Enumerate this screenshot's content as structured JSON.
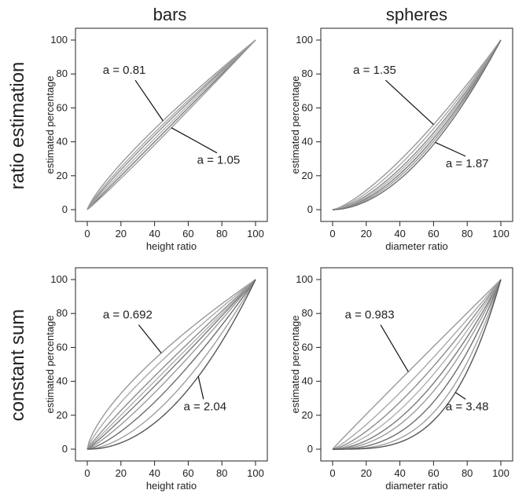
{
  "layout_labels": {
    "columns": [
      "bars",
      "spheres"
    ],
    "rows": [
      "ratio estimation",
      "constant sum"
    ]
  },
  "chart_data": [
    {
      "type": "line",
      "row": "ratio estimation",
      "column": "bars",
      "xlabel": "height ratio",
      "ylabel": "estimated percentage",
      "xlim": [
        0,
        100
      ],
      "ylim": [
        0,
        100
      ],
      "xticks": [
        0,
        20,
        40,
        60,
        80,
        100
      ],
      "yticks": [
        0,
        20,
        40,
        60,
        80,
        100
      ],
      "model": "y = 100 * (x/100)^a",
      "exponents": [
        0.81,
        0.86,
        0.9,
        0.95,
        1.0,
        1.05
      ],
      "annotations": [
        {
          "text": "a = 0.81",
          "exponent": 0.81,
          "label_x": 22,
          "label_y": 80,
          "point_x": 45
        },
        {
          "text": "a = 1.05",
          "exponent": 1.05,
          "label_x": 78,
          "label_y": 27,
          "point_x": 50
        }
      ]
    },
    {
      "type": "line",
      "row": "ratio estimation",
      "column": "spheres",
      "xlabel": "diameter ratio",
      "ylabel": "estimated percentage",
      "xlim": [
        0,
        100
      ],
      "ylim": [
        0,
        100
      ],
      "xticks": [
        0,
        20,
        40,
        60,
        80,
        100
      ],
      "yticks": [
        0,
        20,
        40,
        60,
        80,
        100
      ],
      "model": "y = 100 * (x/100)^a",
      "exponents": [
        1.35,
        1.45,
        1.55,
        1.62,
        1.7,
        1.78,
        1.87
      ],
      "annotations": [
        {
          "text": "a = 1.35",
          "exponent": 1.35,
          "label_x": 25,
          "label_y": 80,
          "point_x": 60
        },
        {
          "text": "a = 1.87",
          "exponent": 1.87,
          "label_x": 80,
          "label_y": 25,
          "point_x": 61
        }
      ]
    },
    {
      "type": "line",
      "row": "constant sum",
      "column": "bars",
      "xlabel": "height ratio",
      "ylabel": "estimated percentage",
      "xlim": [
        0,
        100
      ],
      "ylim": [
        0,
        100
      ],
      "xticks": [
        0,
        20,
        40,
        60,
        80,
        100
      ],
      "yticks": [
        0,
        20,
        40,
        60,
        80,
        100
      ],
      "model": "y = 100 * (x/100)^a",
      "exponents": [
        0.692,
        0.8,
        0.92,
        1.0,
        1.08,
        1.2,
        1.4,
        1.7,
        2.04
      ],
      "annotations": [
        {
          "text": "a = 0.692",
          "exponent": 0.692,
          "label_x": 24,
          "label_y": 77,
          "point_x": 44
        },
        {
          "text": "a = 2.04",
          "exponent": 2.04,
          "label_x": 70,
          "label_y": 23,
          "point_x": 66
        }
      ]
    },
    {
      "type": "line",
      "row": "constant sum",
      "column": "spheres",
      "xlabel": "diameter ratio",
      "ylabel": "estimated percentage",
      "xlim": [
        0,
        100
      ],
      "ylim": [
        0,
        100
      ],
      "xticks": [
        0,
        20,
        40,
        60,
        80,
        100
      ],
      "yticks": [
        0,
        20,
        40,
        60,
        80,
        100
      ],
      "model": "y = 100 * (x/100)^a",
      "exponents": [
        0.983,
        1.2,
        1.4,
        1.6,
        1.85,
        2.1,
        2.5,
        3.0,
        3.48
      ],
      "annotations": [
        {
          "text": "a = 0.983",
          "exponent": 0.983,
          "label_x": 22,
          "label_y": 77,
          "point_x": 45
        },
        {
          "text": "a = 3.48",
          "exponent": 3.48,
          "label_x": 80,
          "label_y": 23,
          "point_x": 73
        }
      ]
    }
  ]
}
